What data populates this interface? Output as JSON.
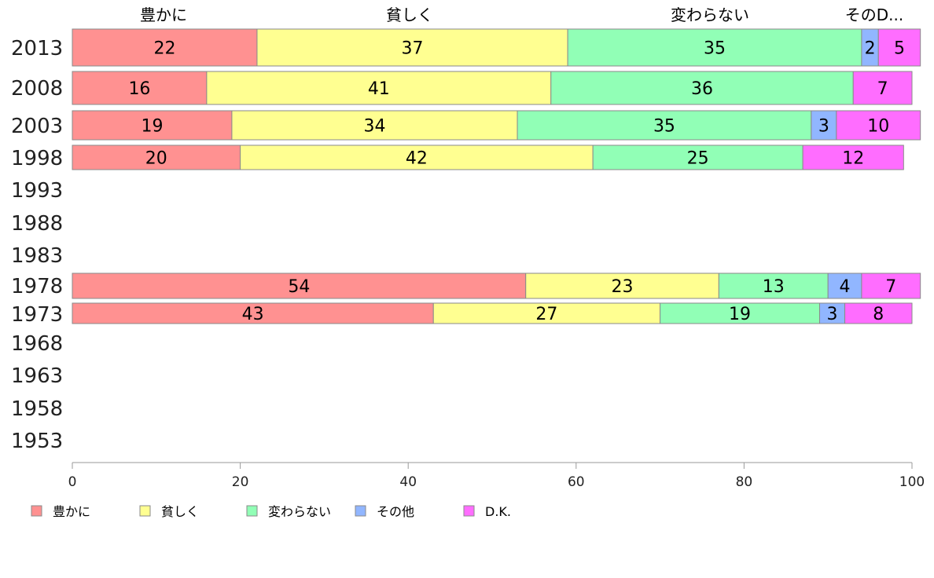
{
  "chart_data": {
    "type": "bar",
    "orientation": "horizontal",
    "stacked": true,
    "categories": [
      "2013",
      "2008",
      "2003",
      "1998",
      "1993",
      "1988",
      "1983",
      "1978",
      "1973",
      "1968",
      "1963",
      "1958",
      "1953"
    ],
    "series": [
      {
        "name": "豊かに",
        "color": "#ff9191",
        "values": [
          22,
          16,
          19,
          20,
          null,
          null,
          null,
          54,
          43,
          null,
          null,
          null,
          null
        ]
      },
      {
        "name": "貧しく",
        "color": "#ffff91",
        "values": [
          37,
          41,
          34,
          42,
          null,
          null,
          null,
          23,
          27,
          null,
          null,
          null,
          null
        ]
      },
      {
        "name": "変わらない",
        "color": "#91ffb6",
        "values": [
          35,
          36,
          35,
          25,
          null,
          null,
          null,
          13,
          19,
          null,
          null,
          null,
          null
        ]
      },
      {
        "name": "その他",
        "color": "#91b6ff",
        "values": [
          2,
          0,
          3,
          0,
          null,
          null,
          null,
          4,
          3,
          null,
          null,
          null,
          null
        ]
      },
      {
        "name": "D.K.",
        "color": "#ff6dff",
        "values": [
          5,
          7,
          10,
          12,
          null,
          null,
          null,
          7,
          8,
          null,
          null,
          null,
          null
        ]
      }
    ],
    "top_labels": [
      "豊かに",
      "貧しく",
      "変わらない",
      "そのD..."
    ],
    "xlim": [
      0,
      100
    ],
    "xticks": [
      0,
      20,
      40,
      60,
      80,
      100
    ],
    "legend_position": "bottom",
    "grid": false
  }
}
